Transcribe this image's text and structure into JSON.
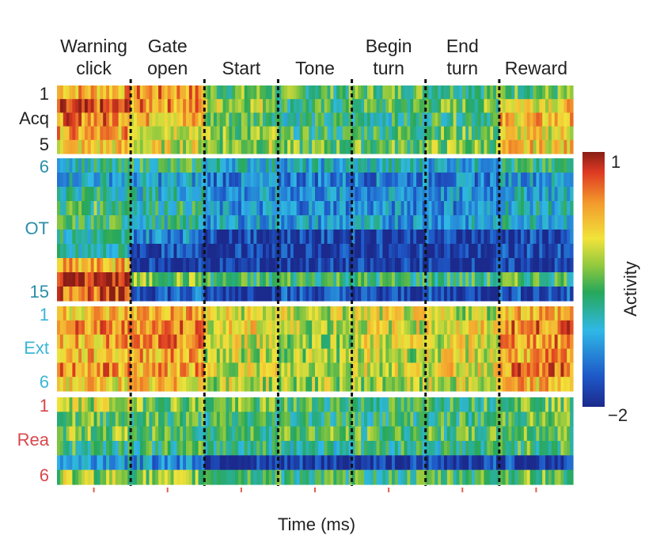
{
  "chart_data": {
    "type": "heatmap",
    "xlabel": "Time (ms)",
    "colorbar": {
      "label": "Activity",
      "max_label": "1",
      "min_label": "−2",
      "range": [
        -2,
        1
      ],
      "colormap": "jet"
    },
    "phases": [
      {
        "label": "Warning\nclick"
      },
      {
        "label": "Gate\nopen"
      },
      {
        "label": "Start"
      },
      {
        "label": "Tone"
      },
      {
        "label": "Begin\nturn"
      },
      {
        "label": "End\nturn"
      },
      {
        "label": "Reward"
      }
    ],
    "groups": [
      {
        "name": "Acq",
        "first": "1",
        "last": "5",
        "color": "#222222",
        "rows": [
          [
            0.3,
            0.4,
            -0.5,
            -0.6,
            -0.5,
            -0.6,
            -0.5
          ],
          [
            0.6,
            0.4,
            -0.2,
            -0.7,
            -0.6,
            -0.5,
            0.1
          ],
          [
            0.5,
            0.2,
            -0.5,
            -0.8,
            -0.8,
            -0.6,
            0.2
          ],
          [
            0.3,
            0.0,
            -0.4,
            -0.7,
            -0.6,
            -0.5,
            0.0
          ],
          [
            0.1,
            -0.1,
            -0.3,
            -0.5,
            -0.5,
            -0.4,
            0.1
          ]
        ]
      },
      {
        "name": "OT",
        "first": "6",
        "last": "15",
        "color": "#2a8fa8",
        "rows": [
          [
            -0.9,
            -0.7,
            -1.0,
            -1.1,
            -1.0,
            -1.1,
            -0.8
          ],
          [
            -1.1,
            -1.2,
            -1.4,
            -1.4,
            -1.4,
            -1.4,
            -1.2
          ],
          [
            -0.8,
            -1.0,
            -1.3,
            -1.3,
            -1.3,
            -1.3,
            -1.1
          ],
          [
            -0.6,
            -0.8,
            -1.3,
            -1.3,
            -1.3,
            -1.3,
            -1.0
          ],
          [
            -0.7,
            -0.9,
            -1.2,
            -1.2,
            -1.2,
            -1.2,
            -1.0
          ],
          [
            -0.9,
            -1.3,
            -1.8,
            -1.8,
            -1.8,
            -1.8,
            -1.8
          ],
          [
            -1.0,
            -1.8,
            -1.9,
            -1.9,
            -1.9,
            -1.9,
            -1.8
          ],
          [
            0.2,
            -1.9,
            -1.9,
            -1.9,
            -1.9,
            -1.9,
            -1.9
          ],
          [
            0.9,
            -0.4,
            -0.7,
            -0.6,
            -0.7,
            -0.7,
            -0.6
          ],
          [
            0.6,
            -1.6,
            -1.8,
            -1.7,
            -1.8,
            -1.8,
            -1.7
          ]
        ]
      },
      {
        "name": "Ext",
        "first": "1",
        "last": "6",
        "color": "#3bb6d6",
        "rows": [
          [
            0.2,
            0.3,
            -0.1,
            -0.2,
            -0.1,
            -0.2,
            0.3
          ],
          [
            0.4,
            0.5,
            0.0,
            -0.2,
            -0.1,
            0.0,
            0.5
          ],
          [
            0.3,
            0.4,
            -0.1,
            -0.3,
            -0.1,
            -0.1,
            0.4
          ],
          [
            0.2,
            0.3,
            -0.2,
            -0.3,
            -0.2,
            -0.1,
            0.3
          ],
          [
            0.4,
            0.3,
            -0.1,
            -0.2,
            -0.1,
            0.0,
            0.5
          ],
          [
            0.1,
            0.1,
            -0.2,
            -0.3,
            -0.3,
            -0.2,
            0.2
          ]
        ]
      },
      {
        "name": "Rea",
        "first": "1",
        "last": "6",
        "color": "#d9474b",
        "rows": [
          [
            -0.2,
            -0.4,
            -0.5,
            -0.6,
            -0.7,
            -0.6,
            -0.4
          ],
          [
            -0.5,
            -0.6,
            -0.7,
            -0.7,
            -0.7,
            -0.7,
            -0.5
          ],
          [
            -0.4,
            -0.6,
            -0.6,
            -0.5,
            -0.6,
            -0.6,
            -0.5
          ],
          [
            -0.7,
            -0.7,
            -0.7,
            -0.8,
            -0.7,
            -0.8,
            -0.6
          ],
          [
            -1.2,
            -1.3,
            -1.9,
            -1.9,
            -1.9,
            -1.8,
            -1.8
          ],
          [
            -0.3,
            -0.4,
            -0.6,
            -0.7,
            -0.7,
            -0.6,
            -0.5
          ]
        ]
      }
    ]
  }
}
